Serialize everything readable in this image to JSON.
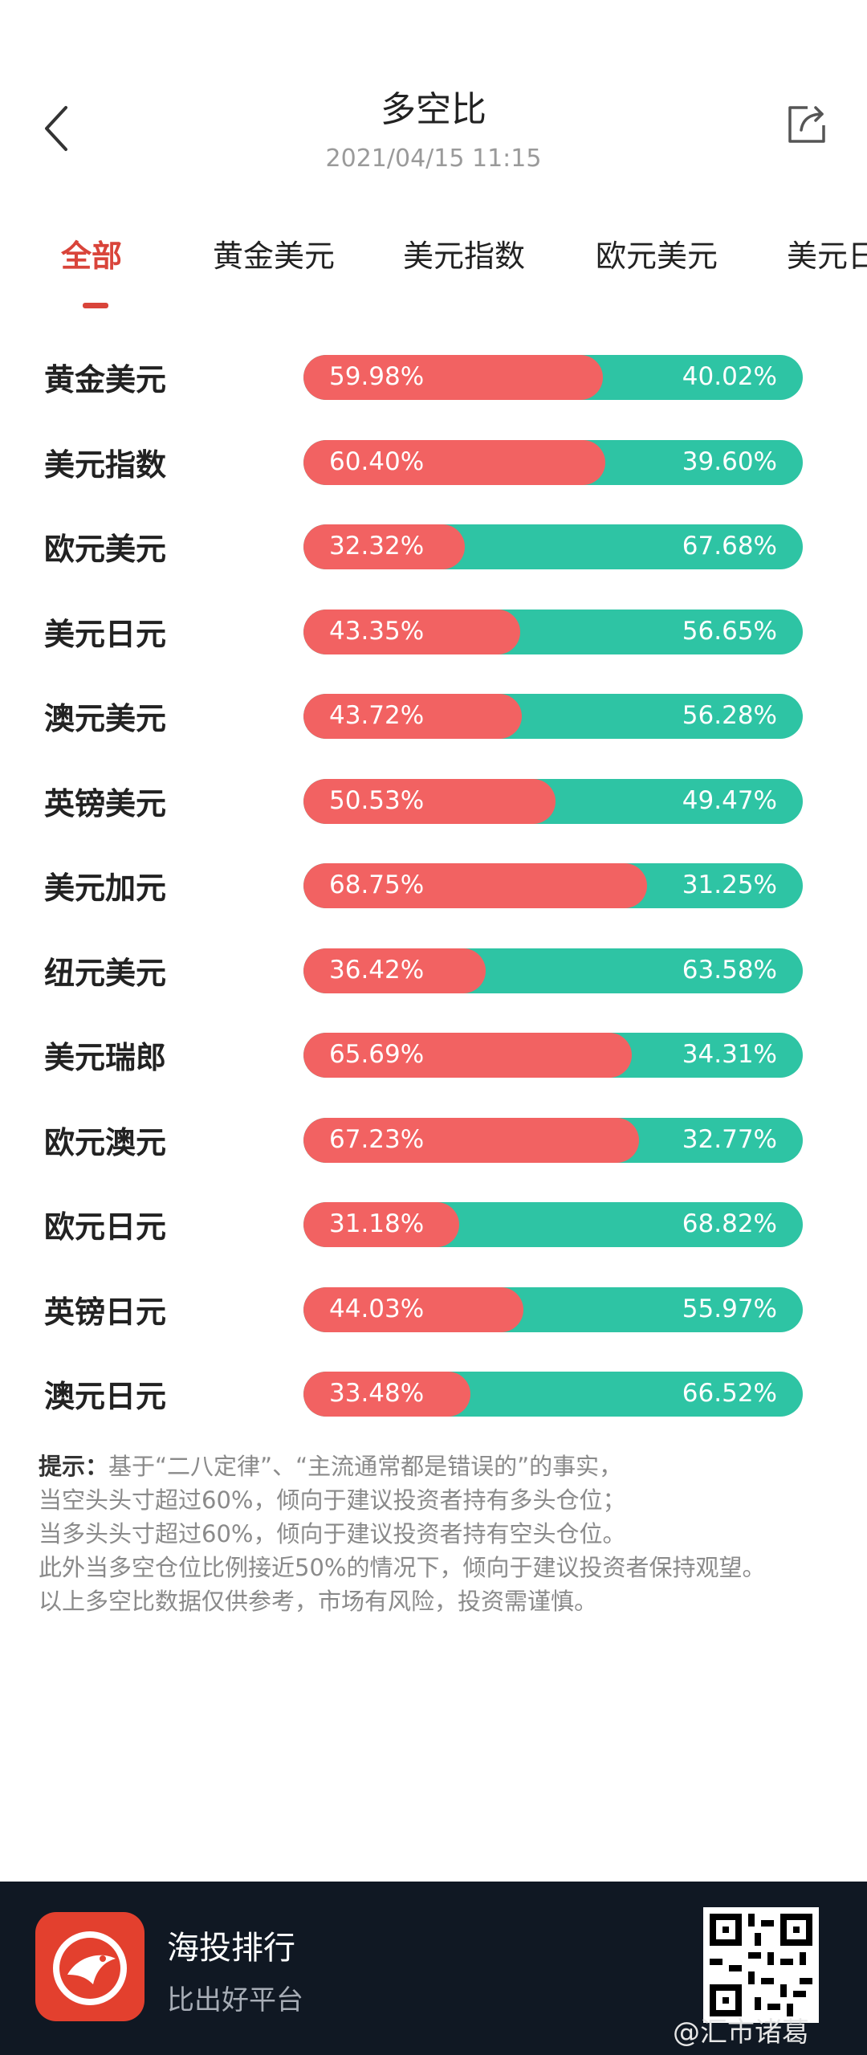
{
  "header": {
    "title": "多空比",
    "timestamp": "2021/04/15 11:15",
    "back_icon": "chevron-left-icon",
    "share_icon": "share-icon"
  },
  "tabs": [
    {
      "label": "全部",
      "active": true
    },
    {
      "label": "黄金美元",
      "active": false
    },
    {
      "label": "美元指数",
      "active": false
    },
    {
      "label": "欧元美元",
      "active": false
    },
    {
      "label": "美元日",
      "active": false
    }
  ],
  "rows": [
    {
      "label": "黄金美元",
      "long": 59.98,
      "short": 40.02,
      "long_text": "59.98%",
      "short_text": "40.02%"
    },
    {
      "label": "美元指数",
      "long": 60.4,
      "short": 39.6,
      "long_text": "60.40%",
      "short_text": "39.60%"
    },
    {
      "label": "欧元美元",
      "long": 32.32,
      "short": 67.68,
      "long_text": "32.32%",
      "short_text": "67.68%"
    },
    {
      "label": "美元日元",
      "long": 43.35,
      "short": 56.65,
      "long_text": "43.35%",
      "short_text": "56.65%"
    },
    {
      "label": "澳元美元",
      "long": 43.72,
      "short": 56.28,
      "long_text": "43.72%",
      "short_text": "56.28%"
    },
    {
      "label": "英镑美元",
      "long": 50.53,
      "short": 49.47,
      "long_text": "50.53%",
      "short_text": "49.47%"
    },
    {
      "label": "美元加元",
      "long": 68.75,
      "short": 31.25,
      "long_text": "68.75%",
      "short_text": "31.25%"
    },
    {
      "label": "纽元美元",
      "long": 36.42,
      "short": 63.58,
      "long_text": "36.42%",
      "short_text": "63.58%"
    },
    {
      "label": "美元瑞郎",
      "long": 65.69,
      "short": 34.31,
      "long_text": "65.69%",
      "short_text": "34.31%"
    },
    {
      "label": "欧元澳元",
      "long": 67.23,
      "short": 32.77,
      "long_text": "67.23%",
      "short_text": "32.77%"
    },
    {
      "label": "欧元日元",
      "long": 31.18,
      "short": 68.82,
      "long_text": "31.18%",
      "short_text": "68.82%"
    },
    {
      "label": "英镑日元",
      "long": 44.03,
      "short": 55.97,
      "long_text": "44.03%",
      "short_text": "55.97%"
    },
    {
      "label": "澳元日元",
      "long": 33.48,
      "short": 66.52,
      "long_text": "33.48%",
      "short_text": "66.52%"
    }
  ],
  "colors": {
    "long": "#f26262",
    "short": "#2ec4a4",
    "accent": "#d9443a"
  },
  "notes": {
    "lead": "提示：",
    "line1": "基于“二八定律”、“主流通常都是错误的”的事实，",
    "line2": "当空头头寸超过60%，倾向于建议投资者持有多头仓位；",
    "line3": "当多头头寸超过60%，倾向于建议投资者持有空头仓位。",
    "line4": "此外当多空仓位比例接近50%的情况下，倾向于建议投资者保持观望。",
    "line5": "以上多空比数据仅供参考，市场有风险，投资需谨慎。"
  },
  "footer": {
    "app_name": "海投排行",
    "slogan": "比出好平台",
    "watermark": "@汇市诸葛"
  }
}
